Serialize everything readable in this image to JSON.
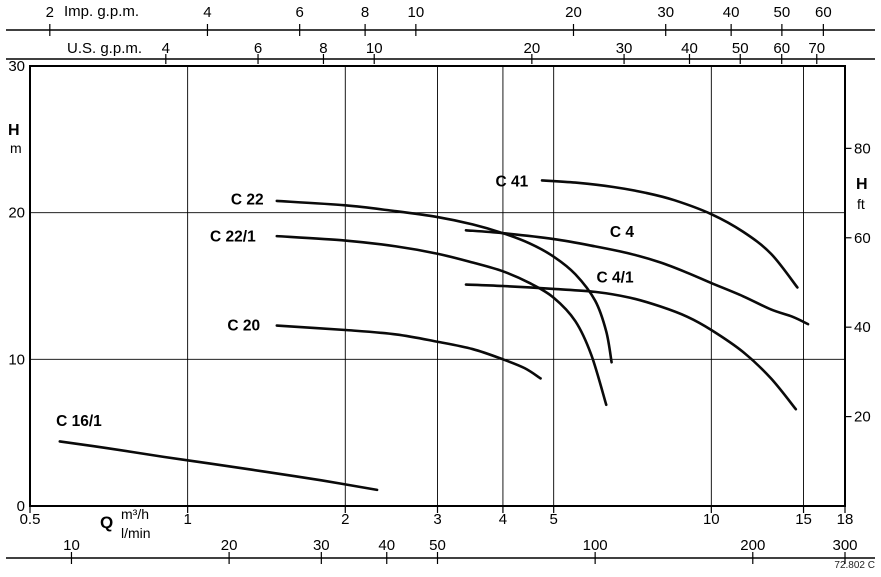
{
  "meta": {
    "drawing_number": "72.802 C"
  },
  "chart_data": {
    "type": "line",
    "x_scale": "log",
    "x_range_m3h": [
      0.5,
      18
    ],
    "grid": {
      "vertical_at_m3h": [
        1,
        2,
        3,
        4,
        5,
        10,
        15
      ],
      "horizontal_at_m": [
        10,
        20
      ]
    },
    "axes": {
      "top_imp": {
        "label": "Imp. g.p.m.",
        "ticks": [
          2,
          4,
          6,
          8,
          10,
          20,
          30,
          40,
          50,
          60
        ],
        "m3h_per_unit": 0.27276
      },
      "top_us": {
        "label": "U.S. g.p.m.",
        "ticks": [
          4,
          6,
          8,
          10,
          20,
          30,
          40,
          50,
          60,
          70
        ],
        "m3h_per_unit": 0.227124
      },
      "bottom_m3h": {
        "label": "Q",
        "unit": "m³/h",
        "ticks": [
          0.5,
          1,
          2,
          3,
          4,
          5,
          10,
          15,
          18
        ]
      },
      "bottom_lmin": {
        "unit": "l/min",
        "ticks": [
          10,
          20,
          30,
          40,
          50,
          100,
          200,
          300
        ],
        "m3h_per_unit": 0.06
      },
      "left_m": {
        "label": "H",
        "unit": "m",
        "range": [
          0,
          30
        ],
        "ticks": [
          0,
          10,
          20,
          30
        ]
      },
      "right_ft": {
        "label": "H",
        "unit": "ft",
        "ticks": [
          20,
          40,
          60,
          80
        ],
        "m_per_unit": 0.3048
      }
    },
    "series": [
      {
        "name": "C 41",
        "label_at": [
          4.16,
          21.8
        ],
        "points": [
          [
            4.75,
            22.2
          ],
          [
            5.5,
            22.05
          ],
          [
            6.5,
            21.75
          ],
          [
            7.5,
            21.35
          ],
          [
            8.5,
            20.85
          ],
          [
            10,
            19.9
          ],
          [
            11.5,
            18.7
          ],
          [
            13,
            17.2
          ],
          [
            14.6,
            14.9
          ]
        ]
      },
      {
        "name": "C 4",
        "label_at": [
          6.75,
          18.35
        ],
        "points": [
          [
            3.4,
            18.8
          ],
          [
            4,
            18.6
          ],
          [
            5,
            18.2
          ],
          [
            6,
            17.7
          ],
          [
            7,
            17.2
          ],
          [
            8,
            16.6
          ],
          [
            9,
            15.9
          ],
          [
            10,
            15.2
          ],
          [
            11.5,
            14.3
          ],
          [
            13,
            13.4
          ],
          [
            14.3,
            12.9
          ],
          [
            15.3,
            12.4
          ]
        ]
      },
      {
        "name": "C 4/1",
        "label_at": [
          6.55,
          15.25
        ],
        "points": [
          [
            3.4,
            15.1
          ],
          [
            4,
            15.0
          ],
          [
            5,
            14.8
          ],
          [
            6,
            14.6
          ],
          [
            7,
            14.2
          ],
          [
            8,
            13.6
          ],
          [
            9,
            12.9
          ],
          [
            10,
            12.0
          ],
          [
            11.5,
            10.5
          ],
          [
            13,
            8.7
          ],
          [
            14.5,
            6.6
          ]
        ]
      },
      {
        "name": "C 22",
        "label_at": [
          1.3,
          20.55
        ],
        "points": [
          [
            1.48,
            20.8
          ],
          [
            2,
            20.5
          ],
          [
            2.5,
            20.1
          ],
          [
            3,
            19.7
          ],
          [
            3.5,
            19.2
          ],
          [
            4,
            18.6
          ],
          [
            4.5,
            17.9
          ],
          [
            5,
            17.0
          ],
          [
            5.5,
            15.8
          ],
          [
            6,
            14.0
          ],
          [
            6.3,
            11.9
          ],
          [
            6.45,
            9.8
          ]
        ]
      },
      {
        "name": "C 22/1",
        "label_at": [
          1.22,
          18.05
        ],
        "points": [
          [
            1.48,
            18.4
          ],
          [
            2,
            18.1
          ],
          [
            2.5,
            17.7
          ],
          [
            3,
            17.2
          ],
          [
            3.5,
            16.6
          ],
          [
            4,
            16.0
          ],
          [
            4.5,
            15.2
          ],
          [
            5,
            14.2
          ],
          [
            5.5,
            12.6
          ],
          [
            5.9,
            10.3
          ],
          [
            6.3,
            6.9
          ]
        ]
      },
      {
        "name": "C 20",
        "label_at": [
          1.28,
          11.95
        ],
        "points": [
          [
            1.48,
            12.3
          ],
          [
            2,
            12.0
          ],
          [
            2.5,
            11.7
          ],
          [
            3,
            11.2
          ],
          [
            3.5,
            10.7
          ],
          [
            4,
            10.0
          ],
          [
            4.4,
            9.4
          ],
          [
            4.72,
            8.7
          ]
        ]
      },
      {
        "name": "C 16/1",
        "label_at": [
          0.62,
          5.45
        ],
        "points": [
          [
            0.57,
            4.4
          ],
          [
            0.7,
            3.95
          ],
          [
            0.9,
            3.35
          ],
          [
            1.1,
            2.9
          ],
          [
            1.4,
            2.35
          ],
          [
            1.8,
            1.75
          ],
          [
            2.3,
            1.1
          ]
        ]
      }
    ]
  }
}
